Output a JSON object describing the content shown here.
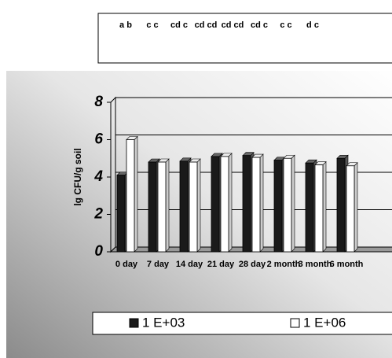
{
  "chart_data": {
    "type": "bar",
    "y_label": "lg CFU/g soil",
    "annotations": [
      "a b",
      "c c",
      "cd c",
      "cd cd",
      "cd cd",
      "cd c",
      "c c",
      "d c"
    ],
    "categories": [
      "0 day",
      "7 day",
      "14 day",
      "21 day",
      "28 day",
      "2 month",
      "3 month",
      "6 month"
    ],
    "series": [
      {
        "name": "1 E+03",
        "color": "#1a1a1a",
        "values": [
          4.1,
          4.8,
          4.85,
          5.1,
          5.15,
          4.9,
          4.75,
          5.0
        ]
      },
      {
        "name": "1 E+06",
        "color": "#ffffff",
        "values": [
          6.0,
          4.8,
          4.8,
          5.1,
          5.05,
          5.0,
          4.65,
          4.6
        ]
      }
    ],
    "ylim": [
      0,
      8
    ],
    "yticks": [
      0,
      2,
      4,
      6,
      8
    ],
    "grid": true
  }
}
